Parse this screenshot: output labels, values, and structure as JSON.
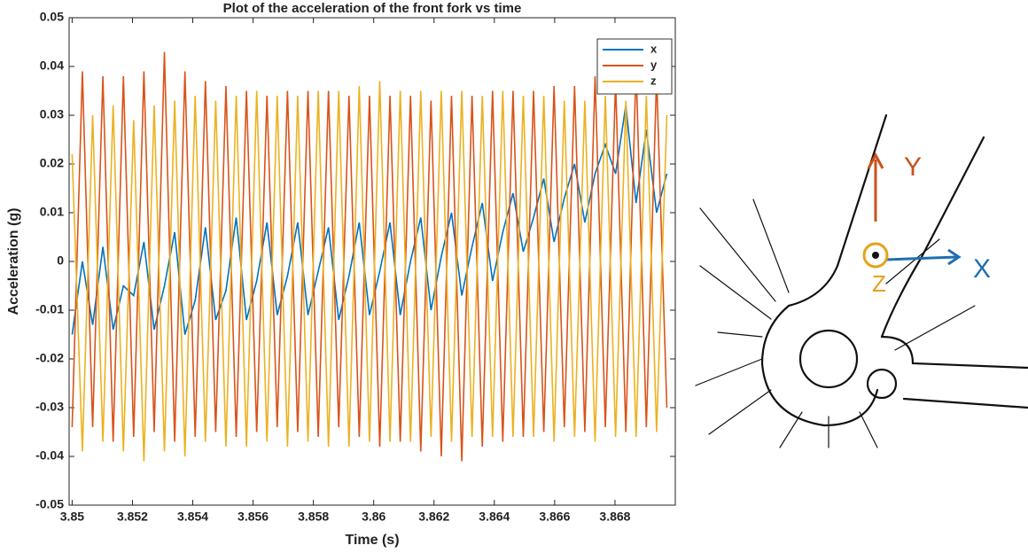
{
  "chart_data": {
    "type": "line",
    "title": "Plot of the acceleration of the front fork vs time",
    "x_label": "Time (s)",
    "y_label": "Acceleration (g)",
    "x": [
      3.85,
      3.85034,
      3.85068,
      3.85102,
      3.85136,
      3.8517,
      3.85204,
      3.85238,
      3.85272,
      3.85306,
      3.8534,
      3.85374,
      3.85408,
      3.85442,
      3.85476,
      3.8551,
      3.85544,
      3.85578,
      3.85612,
      3.85646,
      3.8568,
      3.85714,
      3.85748,
      3.85782,
      3.85816,
      3.8585,
      3.85884,
      3.85918,
      3.85952,
      3.85986,
      3.8602,
      3.86054,
      3.86088,
      3.86122,
      3.86156,
      3.8619,
      3.86224,
      3.86258,
      3.86292,
      3.86326,
      3.8636,
      3.86394,
      3.86428,
      3.86462,
      3.86496,
      3.8653,
      3.86564,
      3.86598,
      3.86632,
      3.86666,
      3.867,
      3.86734,
      3.86768,
      3.86802,
      3.86836,
      3.8687,
      3.86904,
      3.86938,
      3.86972
    ],
    "series": [
      {
        "name": "x",
        "color": "#0072bd",
        "values": [
          -0.015,
          0.0,
          -0.013,
          0.003,
          -0.014,
          -0.005,
          -0.007,
          0.004,
          -0.014,
          -0.005,
          0.006,
          -0.015,
          -0.008,
          0.007,
          -0.012,
          -0.006,
          0.009,
          -0.012,
          -0.004,
          0.008,
          -0.011,
          -0.003,
          0.008,
          -0.011,
          -0.002,
          0.007,
          -0.012,
          -0.003,
          0.008,
          -0.011,
          -0.002,
          0.008,
          -0.011,
          0.0,
          0.009,
          -0.01,
          0.001,
          0.01,
          -0.007,
          0.003,
          0.012,
          -0.004,
          0.006,
          0.014,
          0.002,
          0.009,
          0.017,
          0.004,
          0.013,
          0.02,
          0.008,
          0.018,
          0.024,
          0.018,
          0.032,
          0.012,
          0.027,
          0.01,
          0.018
        ]
      },
      {
        "name": "y",
        "color": "#d95319",
        "values": [
          -0.034,
          0.039,
          -0.034,
          0.038,
          -0.037,
          0.038,
          -0.036,
          0.039,
          -0.035,
          0.043,
          -0.037,
          0.039,
          -0.036,
          0.037,
          -0.035,
          0.036,
          -0.036,
          0.035,
          -0.035,
          0.034,
          -0.034,
          0.035,
          -0.035,
          0.035,
          -0.036,
          0.035,
          -0.034,
          0.034,
          -0.036,
          0.034,
          -0.038,
          0.034,
          -0.037,
          0.034,
          -0.039,
          0.033,
          -0.04,
          0.034,
          -0.041,
          0.034,
          -0.038,
          0.035,
          -0.037,
          0.035,
          -0.036,
          0.035,
          -0.035,
          0.036,
          -0.034,
          0.036,
          -0.035,
          0.038,
          -0.034,
          0.037,
          -0.035,
          0.04,
          -0.034,
          0.038,
          -0.03
        ]
      },
      {
        "name": "z",
        "color": "#edb120",
        "values": [
          0.022,
          -0.039,
          0.03,
          -0.037,
          0.032,
          -0.039,
          0.029,
          -0.041,
          0.032,
          -0.039,
          0.033,
          -0.04,
          0.034,
          -0.037,
          0.033,
          -0.038,
          0.034,
          -0.038,
          0.035,
          -0.037,
          0.034,
          -0.038,
          0.034,
          -0.037,
          0.035,
          -0.038,
          0.035,
          -0.038,
          0.036,
          -0.037,
          0.037,
          -0.037,
          0.035,
          -0.037,
          0.035,
          -0.036,
          0.035,
          -0.037,
          0.035,
          -0.036,
          0.034,
          -0.036,
          0.035,
          -0.036,
          0.034,
          -0.036,
          0.034,
          -0.037,
          0.033,
          -0.036,
          0.033,
          -0.037,
          0.034,
          -0.036,
          0.033,
          -0.036,
          0.034,
          -0.035,
          0.03
        ]
      }
    ],
    "xlim": [
      3.8499,
      3.87
    ],
    "ylim": [
      -0.05,
      0.05
    ],
    "xticks": [
      3.85,
      3.852,
      3.854,
      3.856,
      3.858,
      3.86,
      3.862,
      3.864,
      3.866,
      3.868
    ],
    "yticks": [
      -0.05,
      -0.04,
      -0.03,
      -0.02,
      -0.01,
      0,
      0.01,
      0.02,
      0.03,
      0.04,
      0.05
    ],
    "grid": false,
    "legend": "upper right"
  },
  "sketch": {
    "y_label": "Y",
    "x_label": "X",
    "z_label": "Z"
  }
}
